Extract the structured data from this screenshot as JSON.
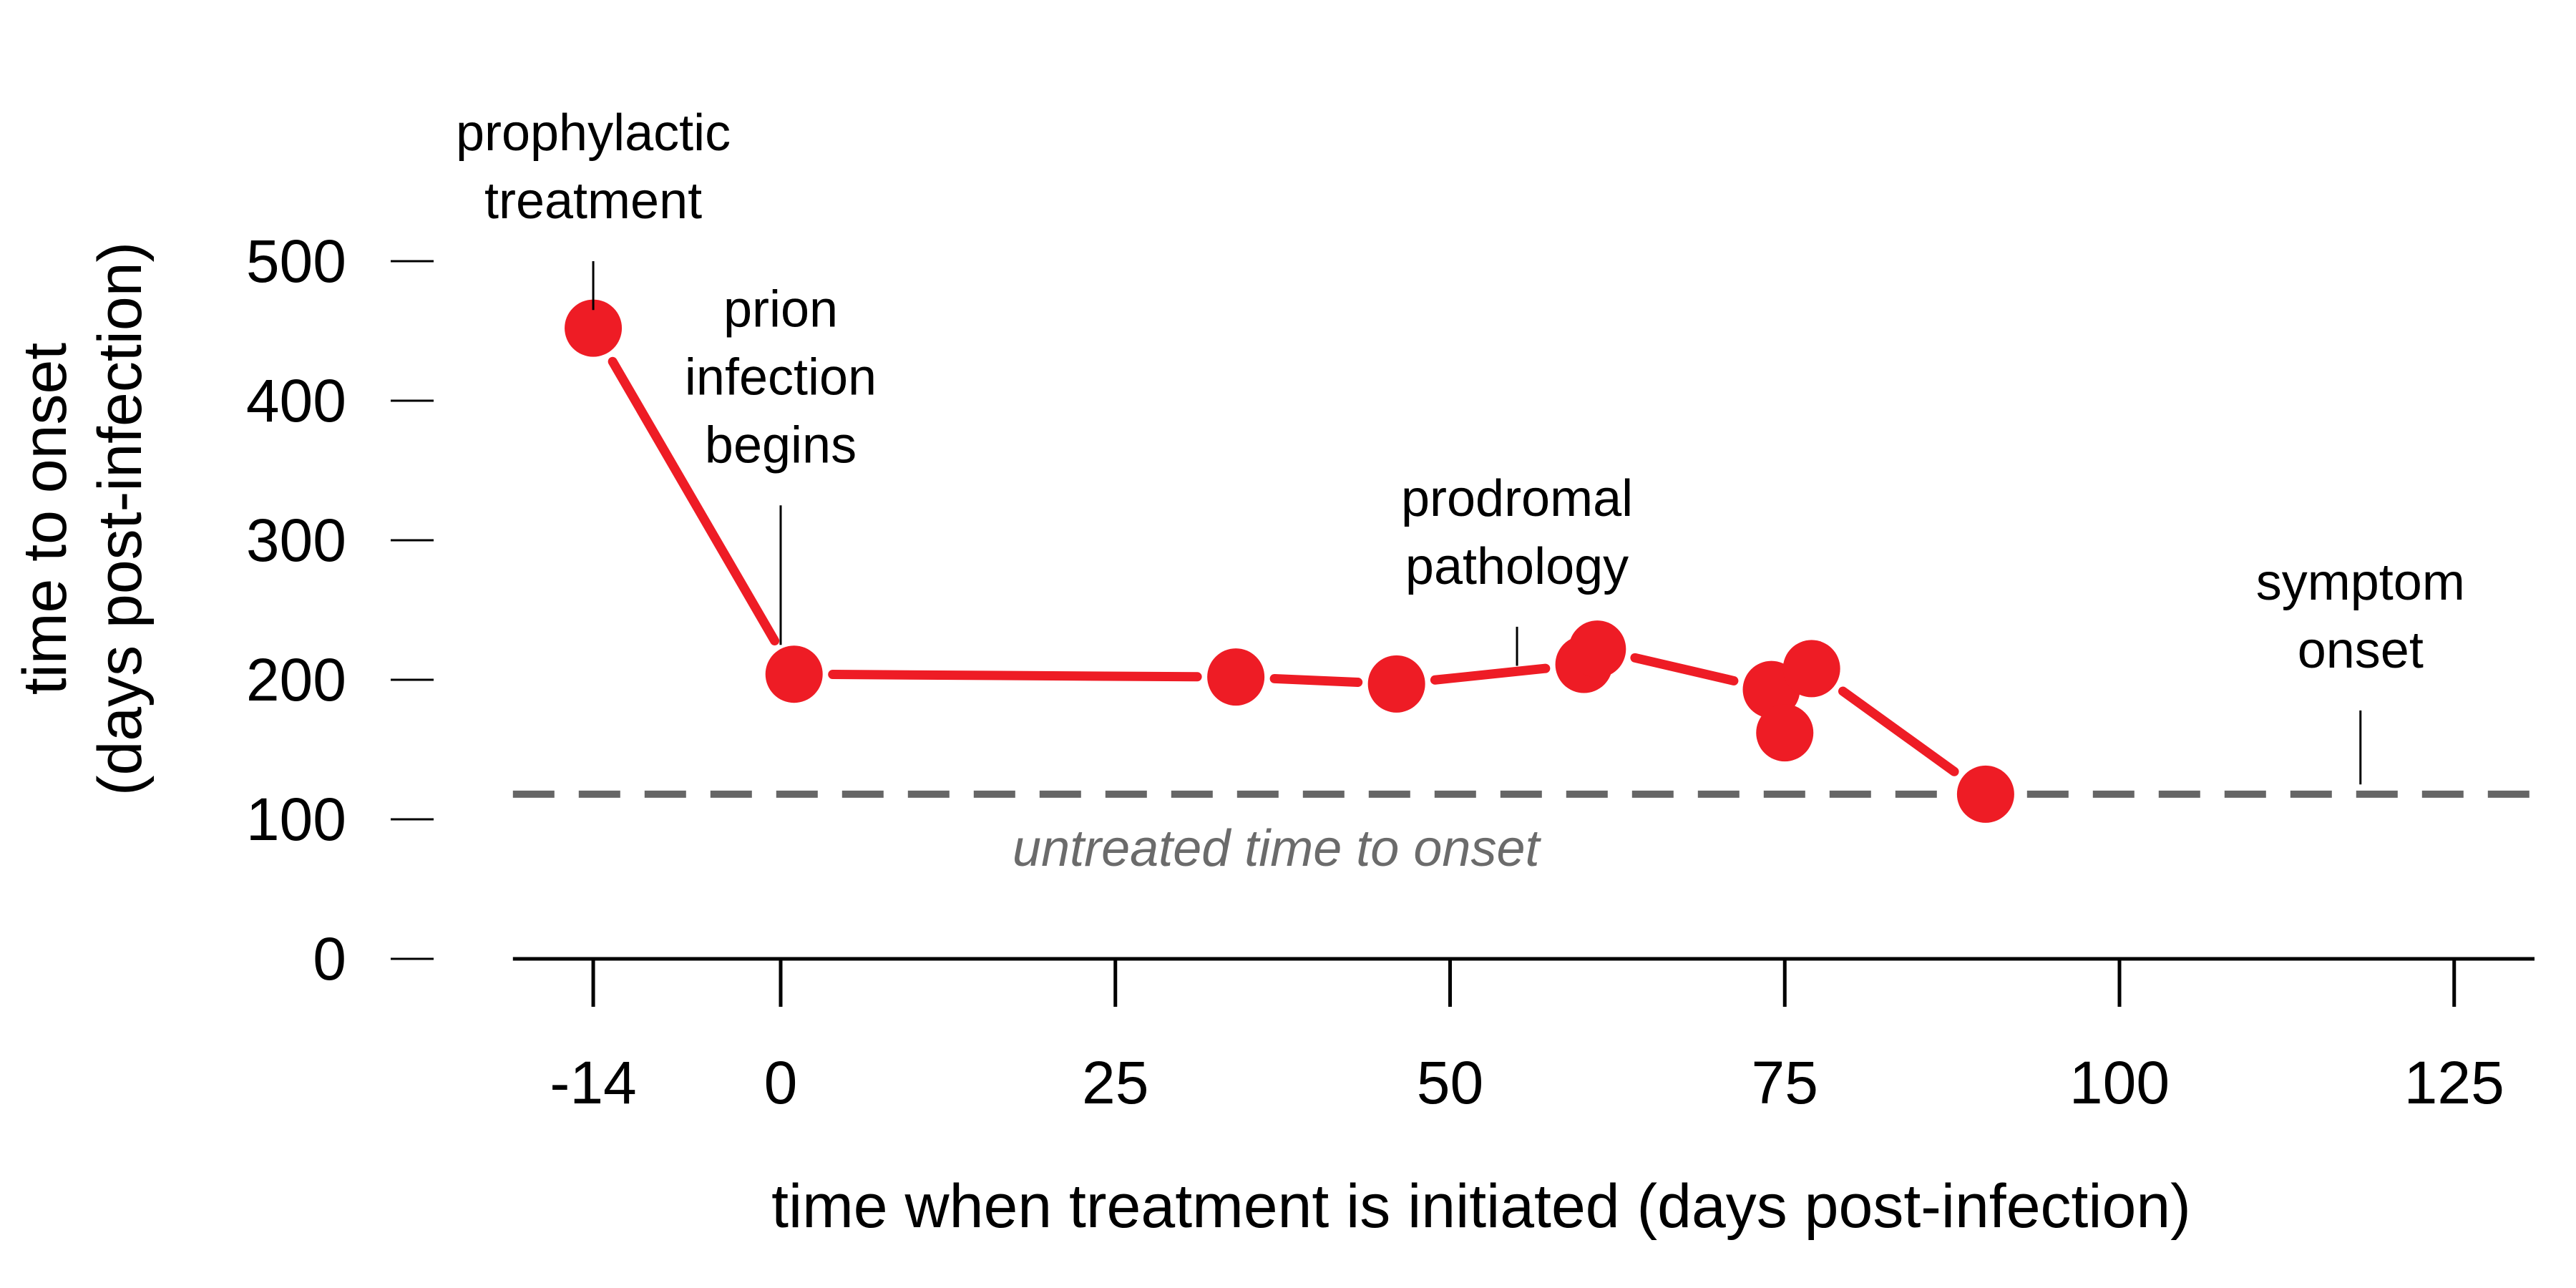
{
  "chart_data": {
    "type": "line",
    "xlabel": "time when treatment is initiated (days post-infection)",
    "ylabel_line1": "time to onset",
    "ylabel_line2": "(days post-infection)",
    "xlim": [
      -20,
      131
    ],
    "ylim": [
      0,
      500
    ],
    "x_ticks": [
      -14,
      0,
      25,
      50,
      75,
      100,
      125
    ],
    "y_ticks": [
      0,
      100,
      200,
      300,
      400,
      500
    ],
    "grid": false,
    "colors": {
      "series": "#ee1c25",
      "baseline": "#666666",
      "axis": "#000000"
    },
    "series": [
      {
        "x": [
          -14,
          1,
          34,
          46,
          60,
          61,
          74,
          75,
          77,
          90
        ],
        "y": [
          452,
          204,
          202,
          197,
          211,
          222,
          193,
          162,
          208,
          118
        ]
      }
    ],
    "segments": [
      [
        0,
        1
      ],
      [
        1,
        2
      ],
      [
        2,
        3
      ],
      [
        3,
        4
      ],
      [
        5,
        6
      ],
      [
        8,
        9
      ]
    ],
    "baseline": {
      "y": 118,
      "label": "untreated time to onset"
    },
    "annotations": [
      {
        "lines": [
          "prophylactic",
          "treatment"
        ],
        "x": -14,
        "y0": 500,
        "y1": 465
      },
      {
        "lines": [
          "prion",
          "infection",
          "begins"
        ],
        "x": 0,
        "y0": 325,
        "y1": 225
      },
      {
        "lines": [
          "prodromal",
          "pathology"
        ],
        "x": 55,
        "y0": 238,
        "y1": 210
      },
      {
        "lines": [
          "symptom",
          "onset"
        ],
        "x": 118,
        "y0": 178,
        "y1": 125
      }
    ]
  }
}
